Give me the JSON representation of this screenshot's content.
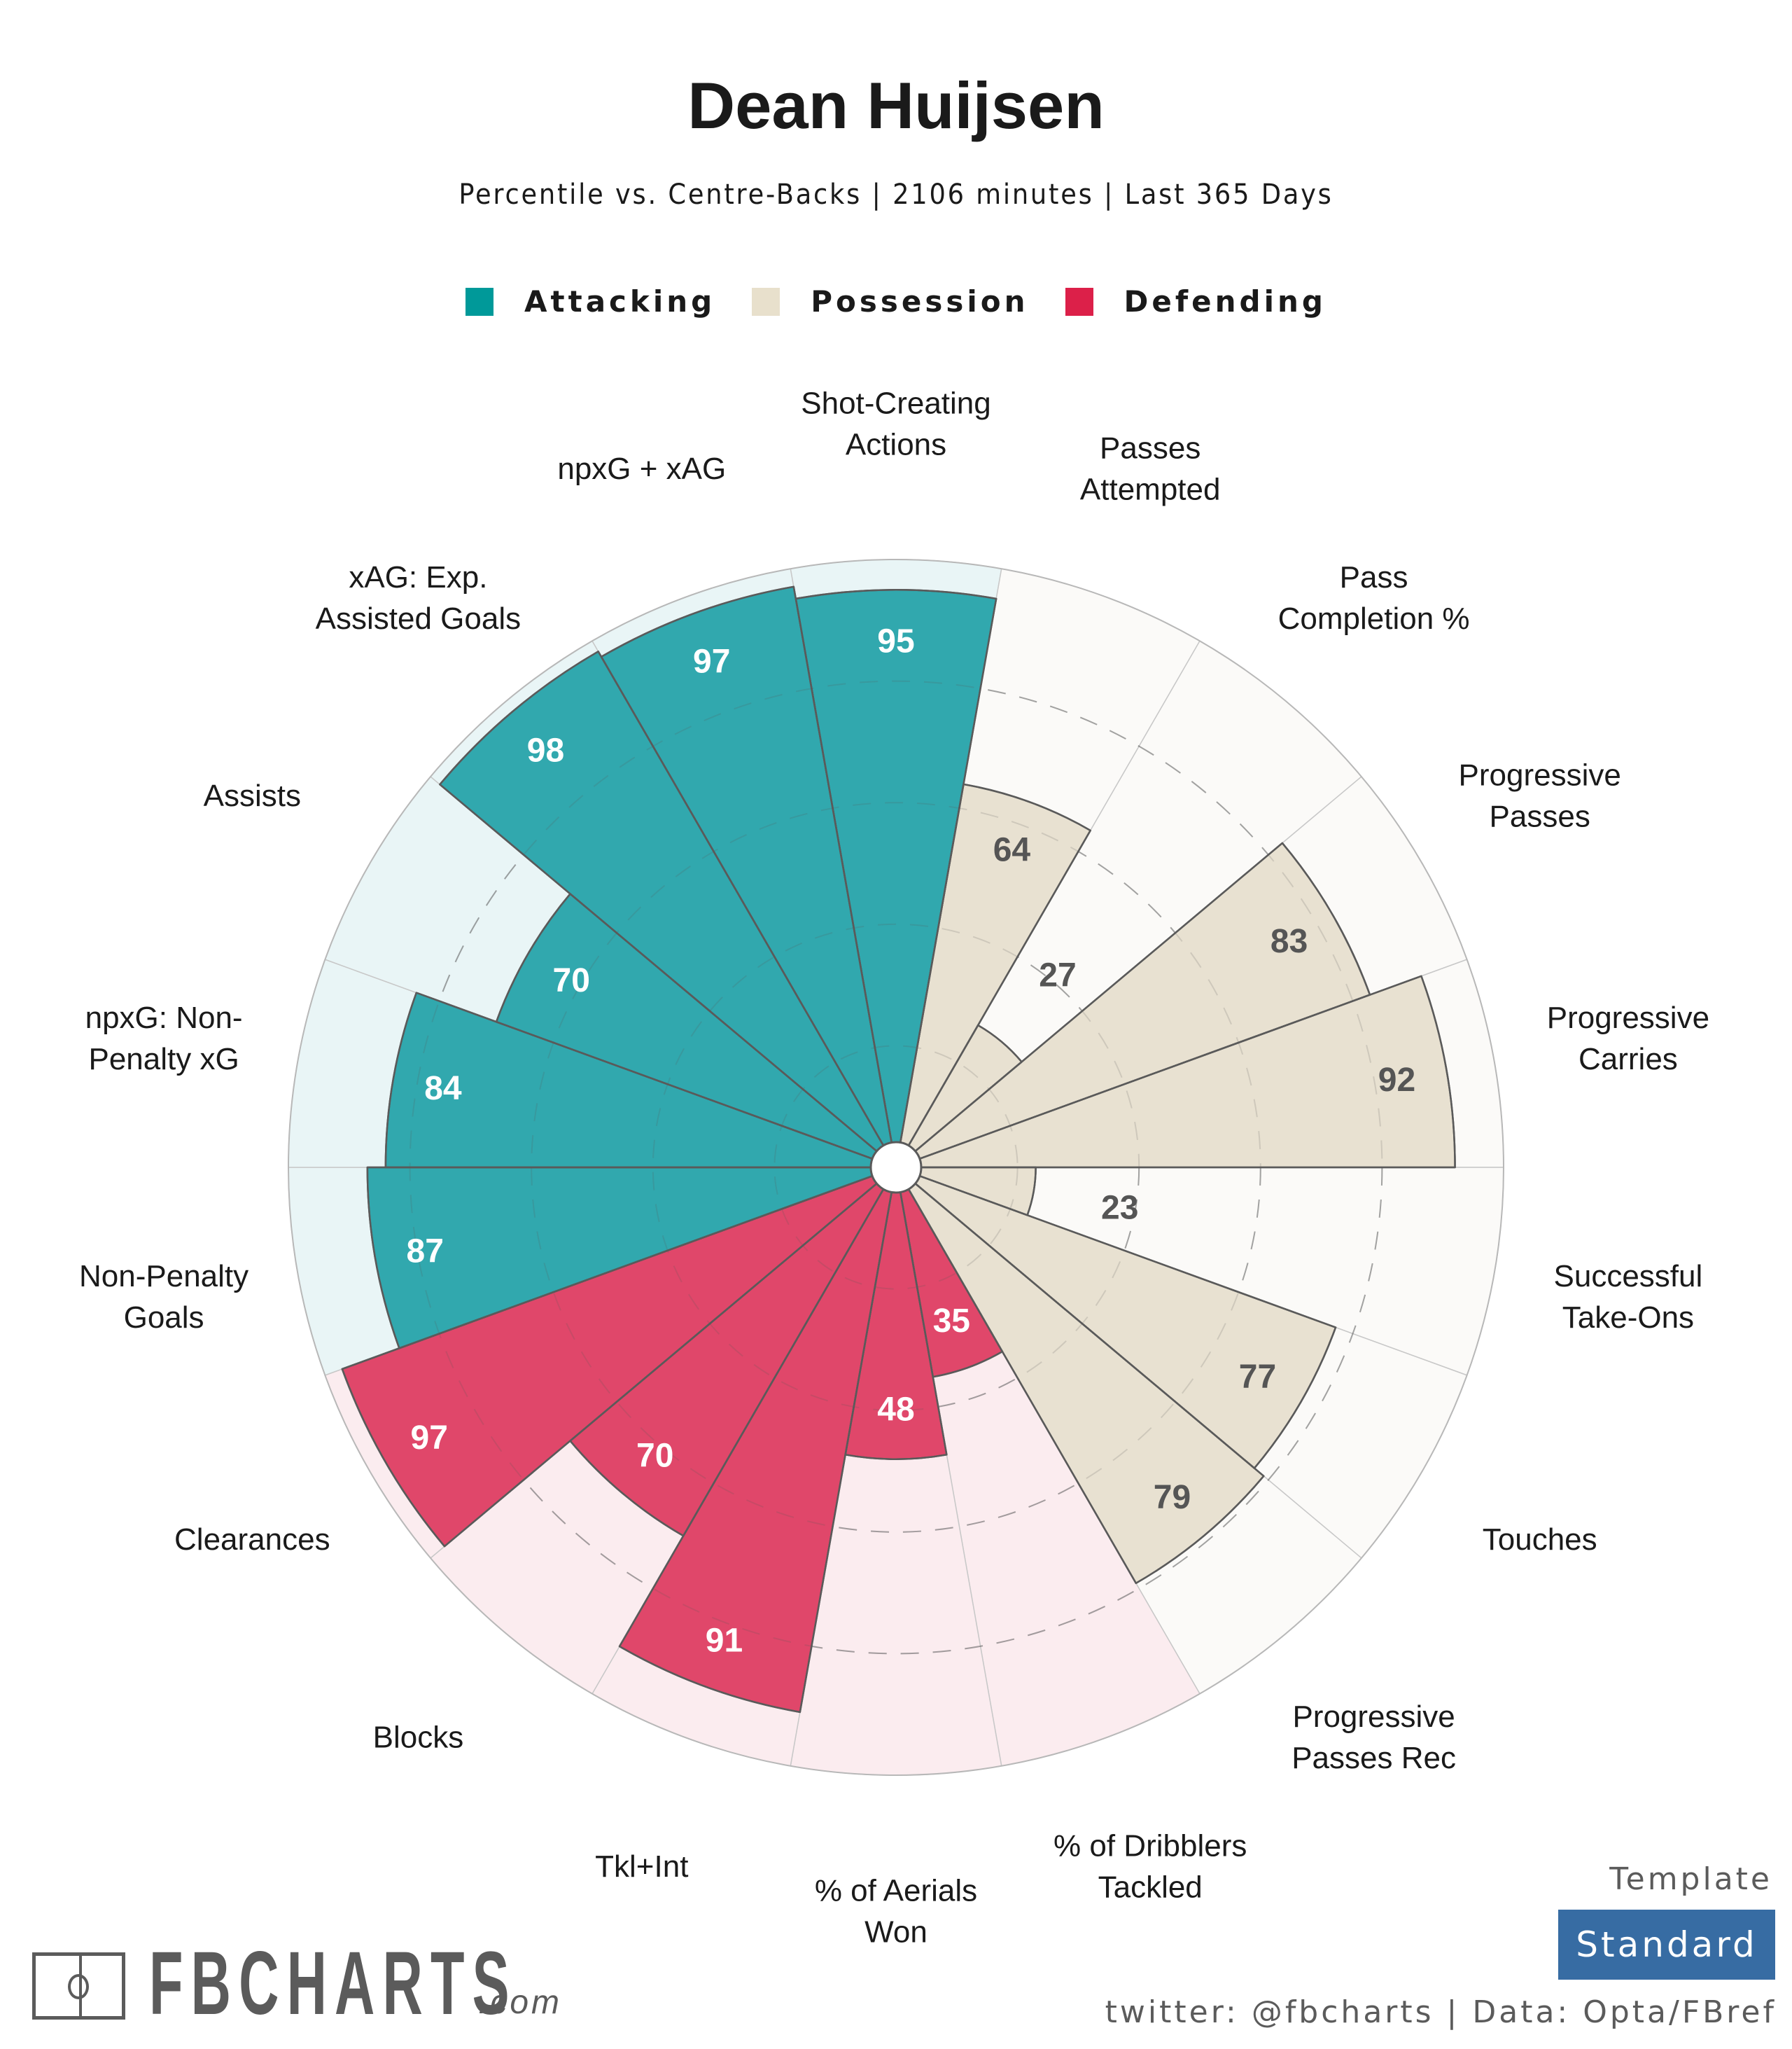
{
  "header": {
    "title": "Dean Huijsen",
    "subtitle": "Percentile vs. Centre-Backs | 2106 minutes | Last 365 Days"
  },
  "legend": [
    {
      "label": "Attacking",
      "color": "#009999"
    },
    {
      "label": "Possession",
      "color": "#e8e0cc"
    },
    {
      "label": "Defending",
      "color": "#dc2049"
    }
  ],
  "chart_data": {
    "type": "polar-bar",
    "title": "Dean Huijsen",
    "subtitle": "Percentile vs. Centre-Backs | 2106 minutes | Last 365 Days",
    "rlim": [
      0,
      100
    ],
    "gridlines": [
      20,
      40,
      60,
      80
    ],
    "grid": true,
    "legend_position": "top",
    "start": "top",
    "direction": "clockwise",
    "group_styles": {
      "Attacking": {
        "bar": "#31a8ae",
        "bg": "#e9f5f6",
        "text": "#ffffff"
      },
      "Possession": {
        "bar": "#e8e1d1",
        "bg": "#fbfaf8",
        "text": "#555555"
      },
      "Defending": {
        "bar": "#e0476a",
        "bg": "#fbecef",
        "text": "#ffffff"
      }
    },
    "categories": [
      {
        "label": "Shot-Creating Actions",
        "lines": [
          "Shot-Creating",
          "Actions"
        ],
        "value": 95,
        "group": "Attacking"
      },
      {
        "label": "Passes Attempted",
        "lines": [
          "Passes",
          "Attempted"
        ],
        "value": 64,
        "group": "Possession"
      },
      {
        "label": "Pass Completion %",
        "lines": [
          "Pass",
          "Completion %"
        ],
        "value": 27,
        "group": "Possession"
      },
      {
        "label": "Progressive Passes",
        "lines": [
          "Progressive",
          "Passes"
        ],
        "value": 83,
        "group": "Possession"
      },
      {
        "label": "Progressive Carries",
        "lines": [
          "Progressive",
          "Carries"
        ],
        "value": 92,
        "group": "Possession"
      },
      {
        "label": "Successful Take-Ons",
        "lines": [
          "Successful",
          "Take-Ons"
        ],
        "value": 23,
        "group": "Possession"
      },
      {
        "label": "Touches",
        "lines": [
          "Touches"
        ],
        "value": 77,
        "group": "Possession"
      },
      {
        "label": "Progressive Passes Rec",
        "lines": [
          "Progressive",
          "Passes Rec"
        ],
        "value": 79,
        "group": "Possession"
      },
      {
        "label": "% of Dribblers Tackled",
        "lines": [
          "% of Dribblers",
          "Tackled"
        ],
        "value": 35,
        "group": "Defending"
      },
      {
        "label": "% of Aerials Won",
        "lines": [
          "% of Aerials",
          "Won"
        ],
        "value": 48,
        "group": "Defending"
      },
      {
        "label": "Tkl+Int",
        "lines": [
          "Tkl+Int"
        ],
        "value": 91,
        "group": "Defending"
      },
      {
        "label": "Blocks",
        "lines": [
          "Blocks"
        ],
        "value": 70,
        "group": "Defending"
      },
      {
        "label": "Clearances",
        "lines": [
          "Clearances"
        ],
        "value": 97,
        "group": "Defending"
      },
      {
        "label": "Non-Penalty Goals",
        "lines": [
          "Non-Penalty",
          "Goals"
        ],
        "value": 87,
        "group": "Attacking"
      },
      {
        "label": "npxG: Non-Penalty xG",
        "lines": [
          "npxG: Non-",
          "Penalty xG"
        ],
        "value": 84,
        "group": "Attacking"
      },
      {
        "label": "Assists",
        "lines": [
          "Assists"
        ],
        "value": 70,
        "group": "Attacking"
      },
      {
        "label": "xAG: Exp. Assisted Goals",
        "lines": [
          "xAG: Exp.",
          "Assisted Goals"
        ],
        "value": 98,
        "group": "Attacking"
      },
      {
        "label": "npxG + xAG",
        "lines": [
          "npxG + xAG"
        ],
        "value": 97,
        "group": "Attacking"
      }
    ]
  },
  "footer": {
    "logo_text": "FBCHARTS",
    "logo_suffix": ".com",
    "template_label": "Template",
    "template_value": "Standard",
    "credit": "twitter: @fbcharts | Data: Opta/FBref"
  }
}
